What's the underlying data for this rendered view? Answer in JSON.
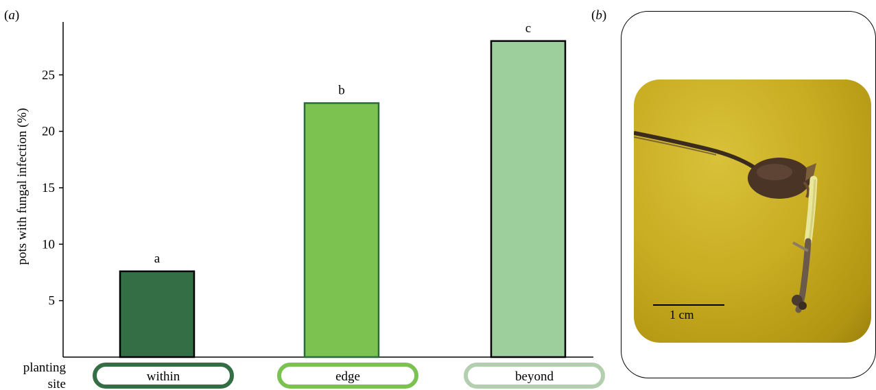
{
  "panel_a_label": "a",
  "panel_b_label": "b",
  "chart_data": {
    "type": "bar",
    "categories": [
      "within",
      "edge",
      "beyond"
    ],
    "values": [
      7.6,
      22.5,
      28.0
    ],
    "significance_letters": [
      "a",
      "b",
      "c"
    ],
    "colors": [
      "#336e45",
      "#7bc250",
      "#9ccf9c"
    ],
    "category_outline_colors": [
      "#336e45",
      "#7bc250",
      "#b3cfb0"
    ],
    "title": "",
    "xlabel": "planting site",
    "ylabel": "pots with fungal infection (%)",
    "ylim": [
      0,
      29.7
    ],
    "yticks": [
      5,
      10,
      15,
      20,
      25
    ],
    "grid": false,
    "legend": "none"
  },
  "photo": {
    "scale_bar_label": "1 cm"
  }
}
